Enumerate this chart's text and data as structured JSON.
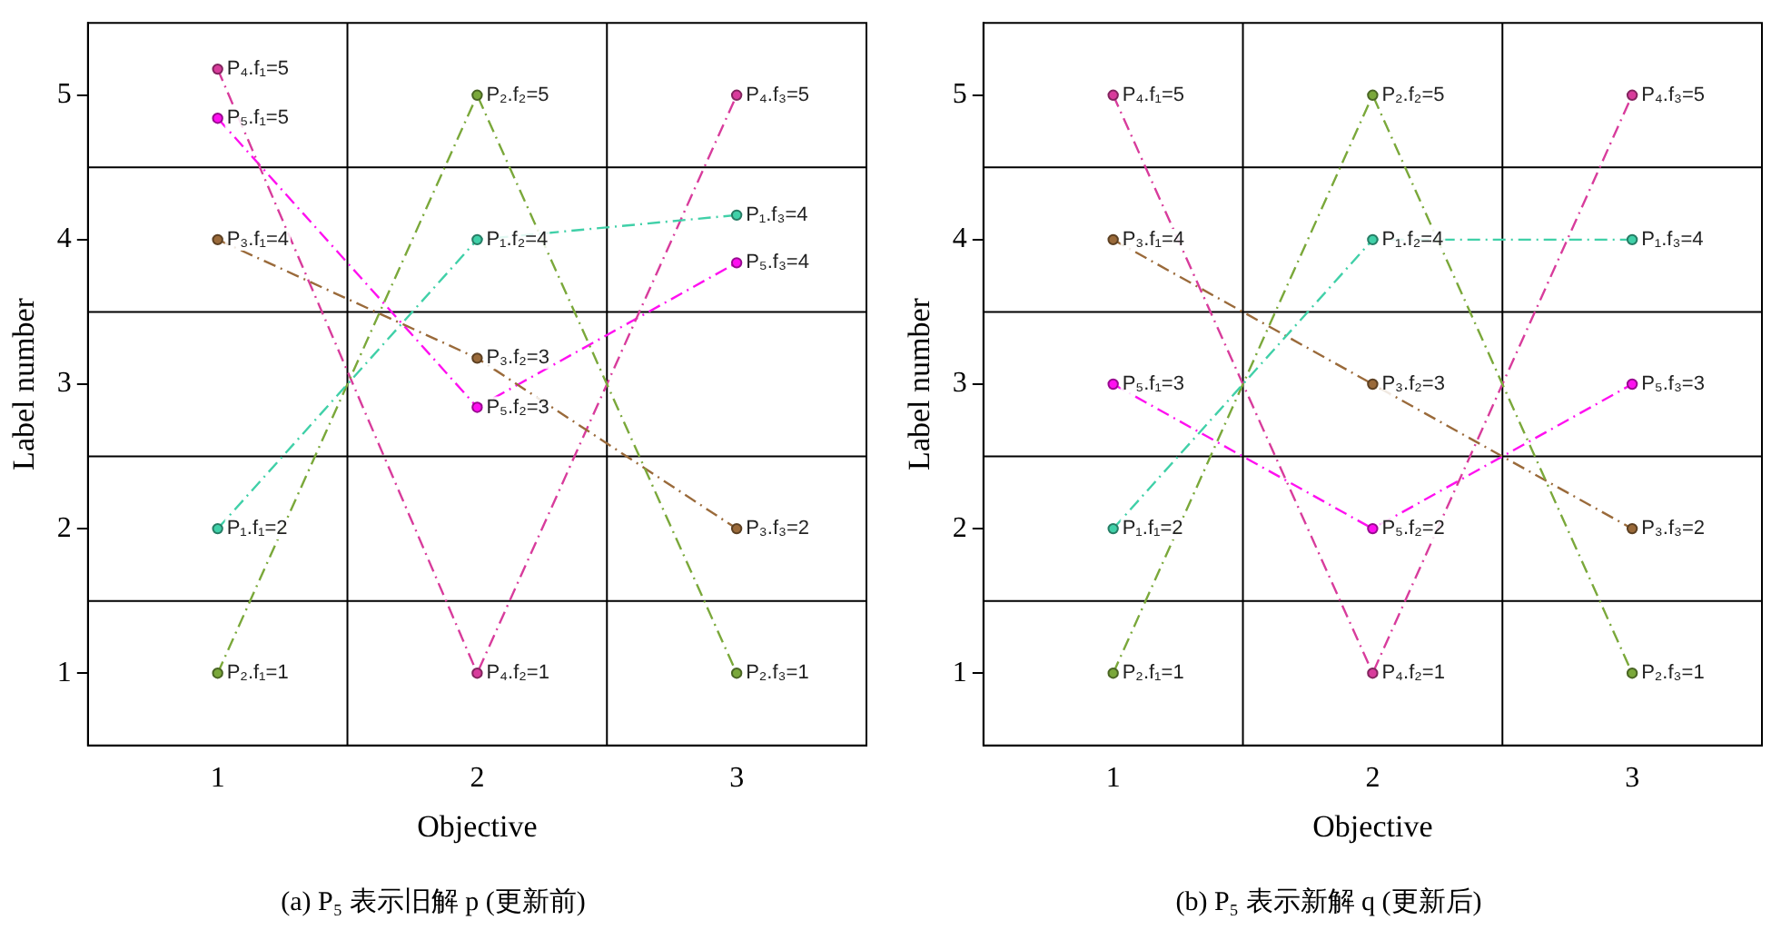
{
  "chart_data": [
    {
      "type": "line",
      "title": "(a) P₅ 表示旧解 p (更新前)",
      "xlabel": "Objective",
      "ylabel": "Label number",
      "x": [
        1,
        2,
        3
      ],
      "xlim": [
        0.5,
        3.5
      ],
      "xticks": [
        1,
        2,
        3
      ],
      "ylim": [
        0.5,
        5.5
      ],
      "yticks": [
        1,
        2,
        3,
        4,
        5
      ],
      "grid": false,
      "marker": "circle",
      "line_style": "dashed",
      "ref_lines": [
        {
          "axis": "x",
          "value": 1.5,
          "color": "#000000"
        },
        {
          "axis": "x",
          "value": 2.5,
          "color": "#000000"
        },
        {
          "axis": "y",
          "value": 1.5,
          "color": "#000000"
        },
        {
          "axis": "y",
          "value": 2.5,
          "color": "#000000"
        },
        {
          "axis": "y",
          "value": 3.5,
          "color": "#000000"
        },
        {
          "axis": "y",
          "value": 4.5,
          "color": "#000000"
        }
      ],
      "series": [
        {
          "color": "#40d0a8",
          "values": [
            2,
            4,
            4.17
          ],
          "value_labels": [
            "P₁.f₁=2",
            "P₁.f₂=4",
            "P₁.f₃=4"
          ]
        },
        {
          "color": "#7aa83a",
          "values": [
            1,
            5,
            1
          ],
          "value_labels": [
            "P₂.f₁=1",
            "P₂.f₂=5",
            "P₂.f₃=1"
          ]
        },
        {
          "color": "#9a6a3a",
          "values": [
            4,
            3.18,
            2
          ],
          "value_labels": [
            "P₃.f₁=4",
            "P₃.f₂=3",
            "P₃.f₃=2"
          ]
        },
        {
          "color": "#d83c9c",
          "values": [
            5.18,
            1,
            5
          ],
          "value_labels": [
            "P₄.f₁=5",
            "P₄.f₂=1",
            "P₄.f₃=5"
          ]
        },
        {
          "color": "#ff10f0",
          "values": [
            4.84,
            2.84,
            3.84
          ],
          "value_labels": [
            "P₅.f₁=5",
            "P₅.f₂=3",
            "P₅.f₃=4"
          ]
        }
      ]
    },
    {
      "type": "line",
      "title": "(b) P₅ 表示新解 q (更新后)",
      "xlabel": "Objective",
      "ylabel": "Label number",
      "x": [
        1,
        2,
        3
      ],
      "xlim": [
        0.5,
        3.5
      ],
      "xticks": [
        1,
        2,
        3
      ],
      "ylim": [
        0.5,
        5.5
      ],
      "yticks": [
        1,
        2,
        3,
        4,
        5
      ],
      "grid": false,
      "marker": "circle",
      "line_style": "dashed",
      "ref_lines": [
        {
          "axis": "x",
          "value": 1.5,
          "color": "#000000"
        },
        {
          "axis": "x",
          "value": 2.5,
          "color": "#000000"
        },
        {
          "axis": "y",
          "value": 1.5,
          "color": "#000000"
        },
        {
          "axis": "y",
          "value": 2.5,
          "color": "#000000"
        },
        {
          "axis": "y",
          "value": 3.5,
          "color": "#000000"
        },
        {
          "axis": "y",
          "value": 4.5,
          "color": "#000000"
        }
      ],
      "series": [
        {
          "color": "#40d0a8",
          "values": [
            2,
            4,
            4
          ],
          "value_labels": [
            "P₁.f₁=2",
            "P₁.f₂=4",
            "P₁.f₃=4"
          ]
        },
        {
          "color": "#7aa83a",
          "values": [
            1,
            5,
            1
          ],
          "value_labels": [
            "P₂.f₁=1",
            "P₂.f₂=5",
            "P₂.f₃=1"
          ]
        },
        {
          "color": "#9a6a3a",
          "values": [
            4,
            3,
            2
          ],
          "value_labels": [
            "P₃.f₁=4",
            "P₃.f₂=3",
            "P₃.f₃=2"
          ]
        },
        {
          "color": "#d83c9c",
          "values": [
            5,
            1,
            5
          ],
          "value_labels": [
            "P₄.f₁=5",
            "P₄.f₂=1",
            "P₄.f₃=5"
          ]
        },
        {
          "color": "#ff10f0",
          "values": [
            3,
            2,
            3
          ],
          "value_labels": [
            "P₅.f₁=3",
            "P₅.f₂=2",
            "P₅.f₃=3"
          ]
        }
      ]
    }
  ]
}
